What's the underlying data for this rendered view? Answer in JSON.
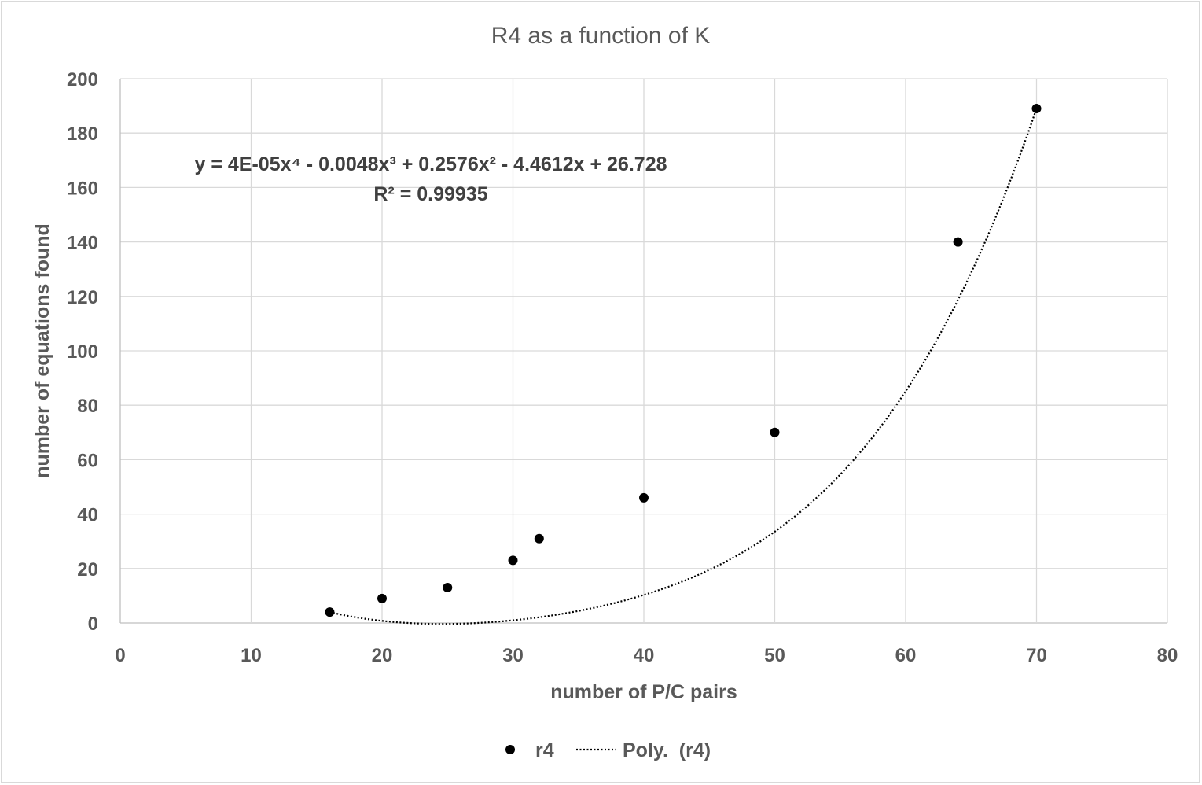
{
  "chart_data": {
    "type": "scatter",
    "title": "R4 as a function of K",
    "xlabel": "number of P/C pairs",
    "ylabel": "number of equations found",
    "xlim": [
      0,
      80
    ],
    "ylim": [
      0,
      200
    ],
    "xticks": [
      0,
      10,
      20,
      30,
      40,
      50,
      60,
      70,
      80
    ],
    "yticks": [
      0,
      20,
      40,
      60,
      80,
      100,
      120,
      140,
      160,
      180,
      200
    ],
    "grid": true,
    "legend_position": "bottom",
    "series": [
      {
        "name": "r4",
        "marker_color": "#000000",
        "x": [
          16,
          20,
          25,
          30,
          32,
          40,
          50,
          64,
          70
        ],
        "y": [
          4,
          9,
          13,
          23,
          31,
          46,
          70,
          140,
          189
        ]
      }
    ],
    "trendline": {
      "name": "Poly.  (r4)",
      "type": "polynomial",
      "order": 4,
      "style": "dotted",
      "coefficients": [
        4e-05,
        -0.0048,
        0.2576,
        -4.4612,
        26.728
      ],
      "x_range": [
        16,
        70
      ],
      "equation_text": "y = 4E-05x⁴ - 0.0048x³ + 0.2576x² - 4.4612x + 26.728",
      "r2_text": "R² = 0.99935"
    }
  }
}
